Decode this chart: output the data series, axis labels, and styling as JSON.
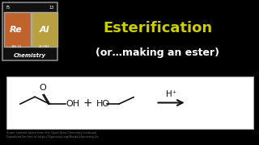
{
  "bg_color": "#000000",
  "title_line1": "Esterification",
  "title_line2": "(or…making an ester)",
  "title_color": "#ffffff",
  "title_highlight_color": "#cccc00",
  "reaction_box_bg": "#ffffff",
  "footnote": "Some content taken from the Open Stax Chemistry textbook.\nDownload for free at https://Openstax.org/Books/chemistry-2e",
  "footnote_color": "#777777",
  "logo_re_color": "#c0622b",
  "logo_al_color": "#b8a040",
  "logo_border_color": "#ffffff"
}
